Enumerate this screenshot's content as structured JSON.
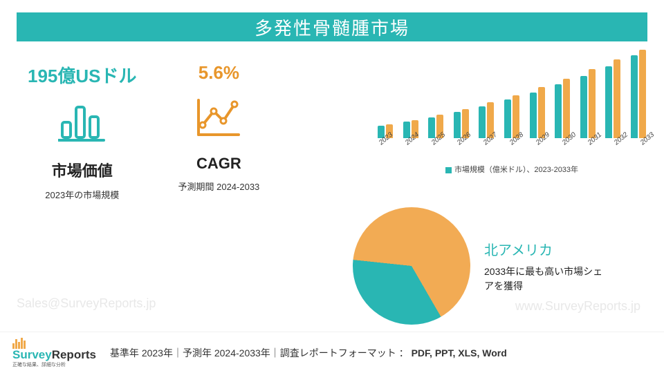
{
  "header": {
    "title": "多発性骨髄腫市場"
  },
  "stats": [
    {
      "value": "195億USドル",
      "value_color": "#29b6b3",
      "label": "市場価値",
      "sub": "2023年の市場規模",
      "icon": "bar"
    },
    {
      "value": "5.6%",
      "value_color": "#e8962b",
      "label": "CAGR",
      "sub": "予測期間 2024-2033",
      "icon": "line"
    }
  ],
  "barchart": {
    "type": "bar",
    "years": [
      "2023",
      "2024",
      "2025",
      "2026",
      "2027",
      "2028",
      "2029",
      "2030",
      "2031",
      "2032",
      "2033"
    ],
    "series_a": [
      18,
      24,
      30,
      38,
      46,
      56,
      66,
      78,
      90,
      104,
      120
    ],
    "series_b": [
      20,
      26,
      34,
      42,
      52,
      62,
      74,
      86,
      100,
      114,
      128
    ],
    "color_a": "#29b6b3",
    "color_b": "#f0a94a",
    "ymax": 130,
    "legend": "市場規模（億米ドル）、2023-2033年",
    "tick_fontsize": 10,
    "tick_rotation": -40
  },
  "pie": {
    "type": "pie",
    "slice_pct": 35,
    "slice_color": "#29b6b3",
    "rest_color": "#f2ab54",
    "rotation_deg": 150,
    "region": "北アメリカ",
    "region_sub": "2033年に最も高い市場シェアを獲得"
  },
  "watermark_left": "Sales@SurveyReports.jp",
  "watermark_right": "www.SurveyReports.jp",
  "logo": {
    "name1": "Survey",
    "name2": "Reports",
    "tagline": "正確な結果、詳細な分析"
  },
  "footer": {
    "text_prefix": "基準年 2023年｜予測年 2024-2033年｜調査レポートフォーマット ： ",
    "formats": "PDF, PPT, XLS, Word"
  },
  "colors": {
    "accent_teal": "#29b6b3",
    "accent_orange": "#e8962b",
    "bar_orange": "#f0a94a",
    "pie_orange": "#f2ab54",
    "watermark": "#e8e8e8",
    "background": "#ffffff"
  }
}
